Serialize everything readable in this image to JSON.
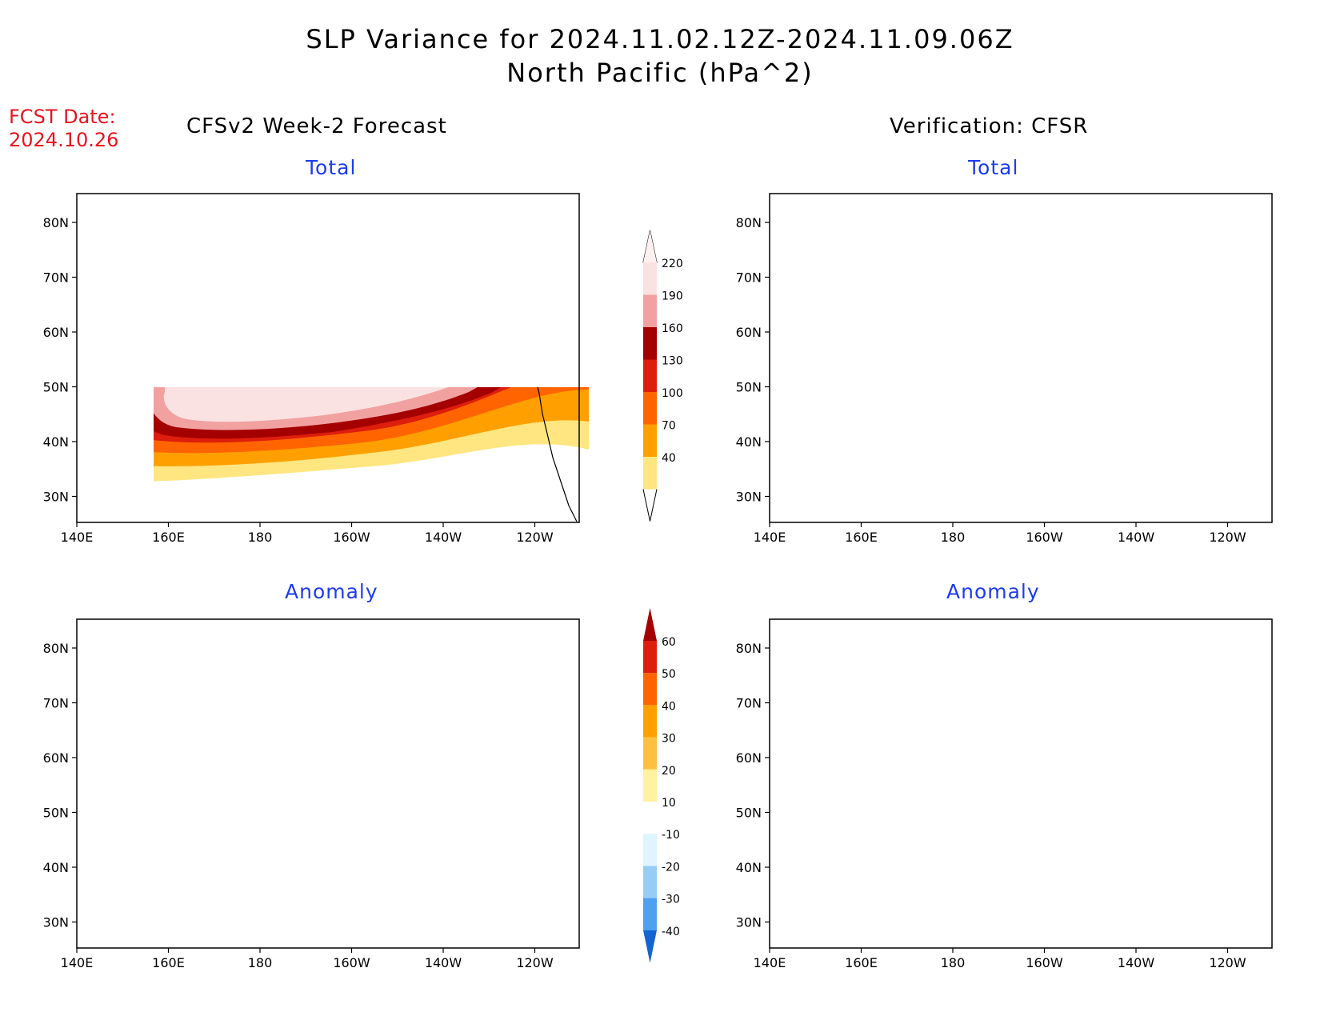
{
  "title_line1": "SLP Variance for 2024.11.02.12Z-2024.11.09.06Z",
  "title_line2": "North Pacific (hPa^2)",
  "fcst_label": "FCST Date:",
  "fcst_date": "2024.10.26",
  "left_column_title": "CFSv2 Week-2 Forecast",
  "right_column_title": "Verification: CFSR",
  "panel_subtitles": {
    "top_left": "Total",
    "top_right": "Total",
    "bottom_left": "Anomaly",
    "bottom_right": "Anomaly"
  },
  "axes": {
    "lon_ticks": [
      "140E",
      "160E",
      "180",
      "160W",
      "140W",
      "120W"
    ],
    "lat_ticks": [
      "80N",
      "70N",
      "60N",
      "50N",
      "40N",
      "30N"
    ]
  },
  "total_colorbar": {
    "labels": [
      "220",
      "190",
      "160",
      "130",
      "100",
      "70",
      "40"
    ],
    "colors_top_to_bottom": [
      "#fbe2e2",
      "#f2a1a1",
      "#a50000",
      "#de1e0c",
      "#ff6400",
      "#ffa000",
      "#ffe680"
    ]
  },
  "anomaly_colorbar": {
    "labels": [
      "60",
      "50",
      "40",
      "30",
      "20",
      "10",
      "-10",
      "-20",
      "-30",
      "-40"
    ],
    "colors_top_to_bottom": [
      "#a50000",
      "#de1e0c",
      "#ff6400",
      "#ffa000",
      "#ffc040",
      "#fff2a0",
      "#ffffff",
      "#dff4ff",
      "#97cdf5",
      "#50a0f0",
      "#1464d2"
    ]
  },
  "map_data": {
    "domain": {
      "lon": [
        "140E",
        "110W"
      ],
      "lat": [
        "25N",
        "85N"
      ]
    },
    "fields": [
      "CFSv2 total SLP variance",
      "CFSR total SLP variance",
      "CFSv2 SLP variance anomaly",
      "CFSR SLP variance anomaly"
    ]
  }
}
